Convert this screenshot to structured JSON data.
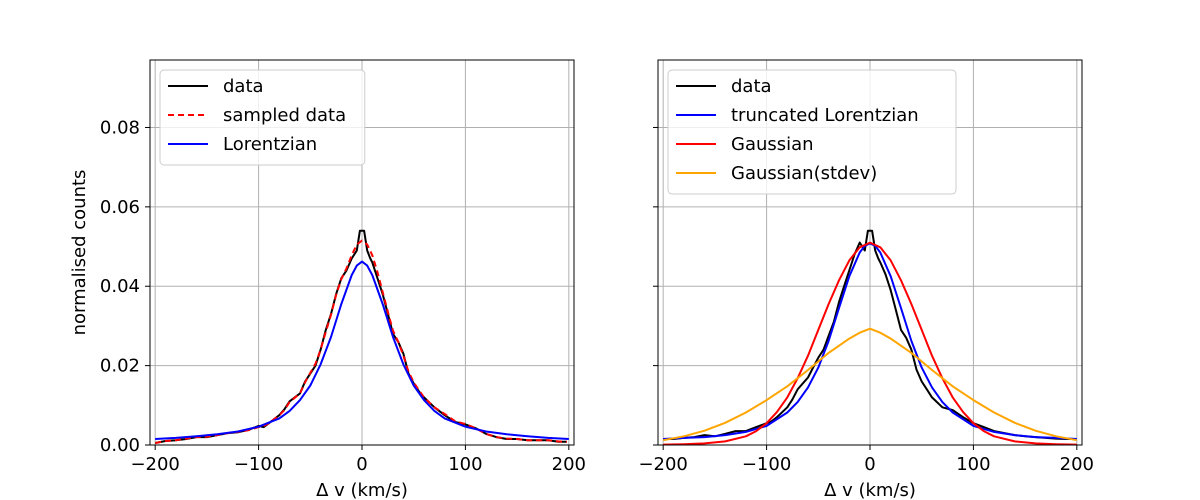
{
  "chart_data": [
    {
      "type": "line",
      "title": "",
      "xlabel": "Δ v (km/s)",
      "ylabel": "normalised counts",
      "xlim": [
        -205,
        205
      ],
      "ylim": [
        0,
        0.097
      ],
      "xticks": [
        -200,
        -100,
        0,
        100,
        200
      ],
      "xtick_labels": [
        "−200",
        "−100",
        "0",
        "100",
        "200"
      ],
      "yticks": [
        0.0,
        0.02,
        0.04,
        0.06,
        0.08
      ],
      "ytick_labels": [
        "0.00",
        "0.02",
        "0.04",
        "0.06",
        "0.08"
      ],
      "grid": true,
      "legend_position": "upper-left",
      "series": [
        {
          "name": "data",
          "color": "#000000",
          "dash": "solid",
          "x": [
            -200,
            -190,
            -180,
            -170,
            -160,
            -150,
            -140,
            -130,
            -120,
            -110,
            -100,
            -95,
            -90,
            -80,
            -75,
            -70,
            -60,
            -55,
            -50,
            -45,
            -40,
            -35,
            -30,
            -25,
            -20,
            -15,
            -10,
            -5,
            -2,
            0,
            2,
            5,
            8,
            10,
            15,
            20,
            25,
            30,
            35,
            40,
            45,
            50,
            55,
            60,
            70,
            80,
            90,
            100,
            110,
            120,
            130,
            140,
            150,
            160,
            170,
            180,
            190,
            198
          ],
          "y": [
            0.0005,
            0.001,
            0.0012,
            0.0015,
            0.002,
            0.002,
            0.0025,
            0.003,
            0.0032,
            0.0038,
            0.0048,
            0.0045,
            0.0055,
            0.0075,
            0.009,
            0.011,
            0.013,
            0.016,
            0.018,
            0.02,
            0.024,
            0.029,
            0.033,
            0.038,
            0.042,
            0.044,
            0.047,
            0.049,
            0.054,
            0.054,
            0.054,
            0.049,
            0.047,
            0.046,
            0.042,
            0.038,
            0.033,
            0.028,
            0.026,
            0.023,
            0.018,
            0.0155,
            0.0135,
            0.012,
            0.0095,
            0.0075,
            0.0058,
            0.0052,
            0.0042,
            0.0028,
            0.002,
            0.0015,
            0.0015,
            0.0012,
            0.0012,
            0.0012,
            0.0008,
            0.0008
          ]
        },
        {
          "name": "sampled data",
          "color": "#ff0000",
          "dash": "dashed",
          "x": [
            -200,
            -190,
            -180,
            -170,
            -160,
            -150,
            -140,
            -130,
            -120,
            -110,
            -100,
            -95,
            -90,
            -80,
            -75,
            -70,
            -60,
            -55,
            -50,
            -45,
            -40,
            -35,
            -30,
            -25,
            -20,
            -15,
            -10,
            -5,
            0,
            5,
            10,
            15,
            20,
            25,
            30,
            35,
            40,
            45,
            50,
            55,
            60,
            70,
            80,
            90,
            100,
            110,
            120,
            130,
            140,
            150,
            160,
            170,
            180,
            190,
            198
          ],
          "y": [
            0.0005,
            0.001,
            0.0012,
            0.0016,
            0.002,
            0.0021,
            0.0025,
            0.003,
            0.0033,
            0.0037,
            0.0045,
            0.0048,
            0.0055,
            0.0075,
            0.0088,
            0.0108,
            0.013,
            0.0158,
            0.0182,
            0.0205,
            0.024,
            0.0285,
            0.0328,
            0.0378,
            0.0418,
            0.0445,
            0.0478,
            0.0505,
            0.0515,
            0.0505,
            0.0478,
            0.0435,
            0.0385,
            0.0335,
            0.0288,
            0.026,
            0.0225,
            0.0185,
            0.0158,
            0.0138,
            0.012,
            0.0095,
            0.0078,
            0.006,
            0.0053,
            0.0042,
            0.0028,
            0.002,
            0.0016,
            0.0015,
            0.0012,
            0.0012,
            0.0012,
            0.0009,
            0.0008
          ]
        },
        {
          "name": "Lorentzian",
          "color": "#0000ff",
          "dash": "solid",
          "x": [
            -200,
            -180,
            -160,
            -140,
            -120,
            -100,
            -80,
            -70,
            -60,
            -50,
            -40,
            -30,
            -20,
            -10,
            -5,
            0,
            5,
            10,
            20,
            30,
            40,
            50,
            60,
            70,
            80,
            100,
            120,
            140,
            160,
            180,
            200
          ],
          "y": [
            0.0015,
            0.0018,
            0.0022,
            0.0027,
            0.0034,
            0.0046,
            0.0067,
            0.0086,
            0.0113,
            0.015,
            0.0203,
            0.0272,
            0.0355,
            0.0428,
            0.0452,
            0.0462,
            0.0452,
            0.0428,
            0.0355,
            0.0272,
            0.0203,
            0.015,
            0.0113,
            0.0086,
            0.0067,
            0.0046,
            0.0034,
            0.0027,
            0.0022,
            0.0018,
            0.0015
          ]
        }
      ]
    },
    {
      "type": "line",
      "title": "",
      "xlabel": "Δ v (km/s)",
      "ylabel": "",
      "xlim": [
        -205,
        205
      ],
      "ylim": [
        0,
        0.097
      ],
      "xticks": [
        -200,
        -100,
        0,
        100,
        200
      ],
      "xtick_labels": [
        "−200",
        "−100",
        "0",
        "100",
        "200"
      ],
      "yticks": [
        0.0,
        0.02,
        0.04,
        0.06,
        0.08
      ],
      "ytick_labels": [],
      "grid": true,
      "legend_position": "upper-left",
      "series": [
        {
          "name": "data",
          "color": "#000000",
          "dash": "solid",
          "x": [
            -200,
            -190,
            -180,
            -170,
            -160,
            -150,
            -140,
            -130,
            -120,
            -110,
            -100,
            -95,
            -90,
            -80,
            -75,
            -70,
            -60,
            -55,
            -50,
            -45,
            -40,
            -35,
            -30,
            -25,
            -20,
            -15,
            -10,
            -5,
            -2,
            0,
            2,
            5,
            8,
            10,
            15,
            20,
            25,
            30,
            35,
            40,
            45,
            50,
            55,
            60,
            70,
            80,
            90,
            100,
            110,
            120,
            130,
            140,
            150,
            160,
            170,
            180,
            190,
            198
          ],
          "y": [
            0.0015,
            0.0015,
            0.0018,
            0.002,
            0.0025,
            0.0022,
            0.0028,
            0.0035,
            0.0035,
            0.0045,
            0.0055,
            0.006,
            0.007,
            0.0095,
            0.0115,
            0.014,
            0.017,
            0.0195,
            0.022,
            0.024,
            0.0275,
            0.031,
            0.036,
            0.04,
            0.044,
            0.048,
            0.051,
            0.049,
            0.054,
            0.054,
            0.054,
            0.049,
            0.047,
            0.046,
            0.043,
            0.039,
            0.034,
            0.029,
            0.027,
            0.024,
            0.019,
            0.016,
            0.014,
            0.012,
            0.0095,
            0.0088,
            0.007,
            0.0055,
            0.0045,
            0.0035,
            0.003,
            0.0025,
            0.0022,
            0.002,
            0.0018,
            0.0016,
            0.0015,
            0.0015
          ]
        },
        {
          "name": "truncated Lorentzian",
          "color": "#0000ff",
          "dash": "solid",
          "x": [
            -200,
            -180,
            -160,
            -140,
            -120,
            -100,
            -80,
            -70,
            -60,
            -50,
            -40,
            -30,
            -20,
            -10,
            -5,
            0,
            5,
            10,
            20,
            30,
            40,
            50,
            60,
            70,
            80,
            100,
            120,
            140,
            160,
            180,
            200
          ],
          "y": [
            0.0015,
            0.0018,
            0.002,
            0.0025,
            0.0033,
            0.0048,
            0.0082,
            0.0108,
            0.0145,
            0.0195,
            0.0262,
            0.0345,
            0.0425,
            0.0485,
            0.0502,
            0.0508,
            0.0502,
            0.0485,
            0.0425,
            0.0345,
            0.0262,
            0.0195,
            0.0145,
            0.0108,
            0.0082,
            0.0048,
            0.0033,
            0.0025,
            0.002,
            0.0018,
            0.0015
          ]
        },
        {
          "name": "Gaussian",
          "color": "#ff0000",
          "dash": "solid",
          "x": [
            -200,
            -180,
            -160,
            -140,
            -120,
            -110,
            -100,
            -90,
            -80,
            -70,
            -60,
            -50,
            -40,
            -30,
            -20,
            -10,
            0,
            10,
            20,
            30,
            40,
            50,
            60,
            70,
            80,
            90,
            100,
            110,
            120,
            140,
            160,
            180,
            200
          ],
          "y": [
            0.0001,
            0.0002,
            0.0004,
            0.0009,
            0.0022,
            0.0035,
            0.0055,
            0.0083,
            0.012,
            0.0168,
            0.0225,
            0.029,
            0.0355,
            0.0415,
            0.0465,
            0.0498,
            0.051,
            0.0498,
            0.0465,
            0.0415,
            0.0355,
            0.029,
            0.0225,
            0.0168,
            0.012,
            0.0083,
            0.0055,
            0.0035,
            0.0022,
            0.0009,
            0.0004,
            0.0002,
            0.0001
          ]
        },
        {
          "name": "Gaussian(stdev)",
          "color": "#ffa500",
          "dash": "solid",
          "x": [
            -200,
            -180,
            -160,
            -140,
            -120,
            -100,
            -80,
            -60,
            -40,
            -20,
            -10,
            0,
            10,
            20,
            40,
            60,
            80,
            100,
            120,
            140,
            160,
            180,
            200
          ],
          "y": [
            0.0012,
            0.0022,
            0.0036,
            0.0056,
            0.0082,
            0.0113,
            0.0148,
            0.0189,
            0.0232,
            0.0268,
            0.0283,
            0.0293,
            0.0283,
            0.0268,
            0.0232,
            0.0189,
            0.0148,
            0.0113,
            0.0082,
            0.0056,
            0.0036,
            0.0022,
            0.0012
          ]
        }
      ]
    }
  ]
}
